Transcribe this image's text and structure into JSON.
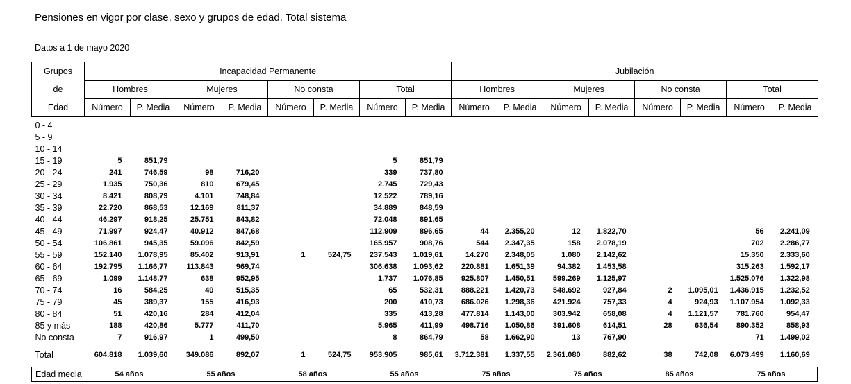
{
  "page": {
    "title": "Pensiones en vigor por clase, sexo y grupos de edad. Total sistema",
    "subtitle": "Datos a 1 de mayo 2020"
  },
  "table": {
    "corner": {
      "lines": [
        "Grupos",
        "de",
        "Edad"
      ]
    },
    "groups": [
      {
        "label": "Incapacidad Permanente"
      },
      {
        "label": "Jubilación"
      }
    ],
    "sexes": [
      "Hombres",
      "Mujeres",
      "No consta",
      "Total"
    ],
    "measures": [
      "Número",
      "P. Media"
    ],
    "rows": [
      {
        "label": "0 - 4",
        "cells": [
          "",
          "",
          "",
          "",
          "",
          "",
          "",
          "",
          "",
          "",
          "",
          "",
          "",
          "",
          "",
          ""
        ]
      },
      {
        "label": "5 - 9",
        "cells": [
          "",
          "",
          "",
          "",
          "",
          "",
          "",
          "",
          "",
          "",
          "",
          "",
          "",
          "",
          "",
          ""
        ]
      },
      {
        "label": "10 - 14",
        "cells": [
          "",
          "",
          "",
          "",
          "",
          "",
          "",
          "",
          "",
          "",
          "",
          "",
          "",
          "",
          "",
          ""
        ]
      },
      {
        "label": "15 - 19",
        "cells": [
          "5",
          "851,79",
          "",
          "",
          "",
          "",
          "5",
          "851,79",
          "",
          "",
          "",
          "",
          "",
          "",
          "",
          ""
        ]
      },
      {
        "label": "20 - 24",
        "cells": [
          "241",
          "746,59",
          "98",
          "716,20",
          "",
          "",
          "339",
          "737,80",
          "",
          "",
          "",
          "",
          "",
          "",
          "",
          ""
        ]
      },
      {
        "label": "25 - 29",
        "cells": [
          "1.935",
          "750,36",
          "810",
          "679,45",
          "",
          "",
          "2.745",
          "729,43",
          "",
          "",
          "",
          "",
          "",
          "",
          "",
          ""
        ]
      },
      {
        "label": "30 - 34",
        "cells": [
          "8.421",
          "808,79",
          "4.101",
          "748,84",
          "",
          "",
          "12.522",
          "789,16",
          "",
          "",
          "",
          "",
          "",
          "",
          "",
          ""
        ]
      },
      {
        "label": "35 - 39",
        "cells": [
          "22.720",
          "868,53",
          "12.169",
          "811,37",
          "",
          "",
          "34.889",
          "848,59",
          "",
          "",
          "",
          "",
          "",
          "",
          "",
          ""
        ]
      },
      {
        "label": "40 - 44",
        "cells": [
          "46.297",
          "918,25",
          "25.751",
          "843,82",
          "",
          "",
          "72.048",
          "891,65",
          "",
          "",
          "",
          "",
          "",
          "",
          "",
          ""
        ]
      },
      {
        "label": "45 - 49",
        "cells": [
          "71.997",
          "924,47",
          "40.912",
          "847,68",
          "",
          "",
          "112.909",
          "896,65",
          "44",
          "2.355,20",
          "12",
          "1.822,70",
          "",
          "",
          "56",
          "2.241,09"
        ]
      },
      {
        "label": "50 - 54",
        "cells": [
          "106.861",
          "945,35",
          "59.096",
          "842,59",
          "",
          "",
          "165.957",
          "908,76",
          "544",
          "2.347,35",
          "158",
          "2.078,19",
          "",
          "",
          "702",
          "2.286,77"
        ]
      },
      {
        "label": "55 - 59",
        "cells": [
          "152.140",
          "1.078,95",
          "85.402",
          "913,91",
          "1",
          "524,75",
          "237.543",
          "1.019,61",
          "14.270",
          "2.348,05",
          "1.080",
          "2.142,62",
          "",
          "",
          "15.350",
          "2.333,60"
        ]
      },
      {
        "label": "60 - 64",
        "cells": [
          "192.795",
          "1.166,77",
          "113.843",
          "969,74",
          "",
          "",
          "306.638",
          "1.093,62",
          "220.881",
          "1.651,39",
          "94.382",
          "1.453,58",
          "",
          "",
          "315.263",
          "1.592,17"
        ]
      },
      {
        "label": "65 - 69",
        "cells": [
          "1.099",
          "1.148,77",
          "638",
          "952,95",
          "",
          "",
          "1.737",
          "1.076,85",
          "925.807",
          "1.450,51",
          "599.269",
          "1.125,97",
          "",
          "",
          "1.525.076",
          "1.322,98"
        ]
      },
      {
        "label": "70 - 74",
        "cells": [
          "16",
          "584,25",
          "49",
          "515,35",
          "",
          "",
          "65",
          "532,31",
          "888.221",
          "1.420,73",
          "548.692",
          "927,84",
          "2",
          "1.095,01",
          "1.436.915",
          "1.232,52"
        ]
      },
      {
        "label": "75 - 79",
        "cells": [
          "45",
          "389,37",
          "155",
          "416,93",
          "",
          "",
          "200",
          "410,73",
          "686.026",
          "1.298,36",
          "421.924",
          "757,33",
          "4",
          "924,93",
          "1.107.954",
          "1.092,33"
        ]
      },
      {
        "label": "80 - 84",
        "cells": [
          "51",
          "420,16",
          "284",
          "412,04",
          "",
          "",
          "335",
          "413,28",
          "477.814",
          "1.143,00",
          "303.942",
          "658,08",
          "4",
          "1.121,57",
          "781.760",
          "954,47"
        ]
      },
      {
        "label": "85 y más",
        "cells": [
          "188",
          "420,86",
          "5.777",
          "411,70",
          "",
          "",
          "5.965",
          "411,99",
          "498.716",
          "1.050,86",
          "391.608",
          "614,51",
          "28",
          "636,54",
          "890.352",
          "858,93"
        ]
      },
      {
        "label": "No consta",
        "cells": [
          "7",
          "916,97",
          "1",
          "499,50",
          "",
          "",
          "8",
          "864,79",
          "58",
          "1.662,90",
          "13",
          "767,90",
          "",
          "",
          "71",
          "1.499,02"
        ]
      }
    ],
    "total": {
      "label": "Total",
      "cells": [
        "604.818",
        "1.039,60",
        "349.086",
        "892,07",
        "1",
        "524,75",
        "953.905",
        "985,61",
        "3.712.381",
        "1.337,55",
        "2.361.080",
        "882,62",
        "38",
        "742,08",
        "6.073.499",
        "1.160,69"
      ]
    },
    "edad_media": {
      "label": "Edad media",
      "values": [
        "54 años",
        "55 años",
        "58 años",
        "55 años",
        "75 años",
        "75 años",
        "85 años",
        "75 años"
      ]
    }
  }
}
